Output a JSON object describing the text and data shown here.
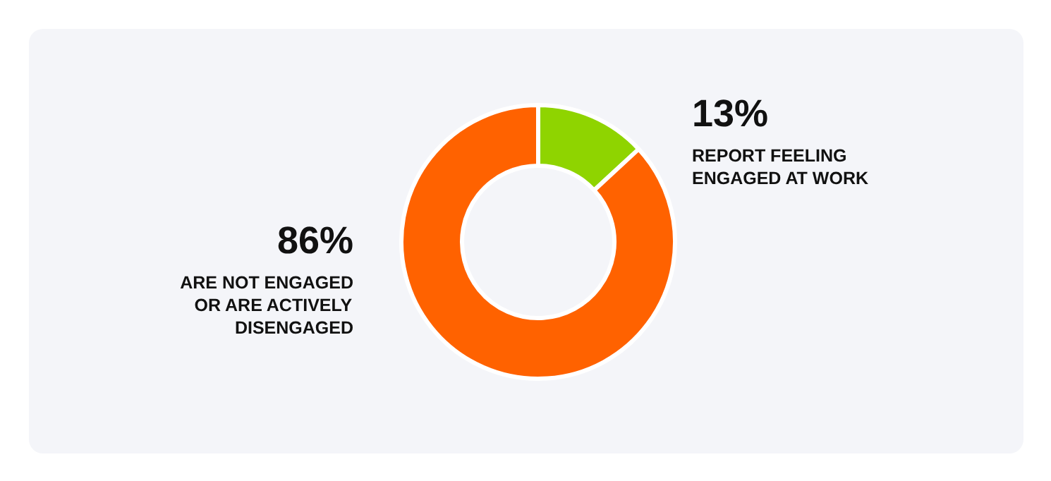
{
  "chart_data": {
    "type": "donut",
    "categories": [
      "REPORT FEELING ENGAGED AT WORK",
      "ARE NOT ENGAGED OR ARE ACTIVELY DISENGAGED"
    ],
    "values": [
      13,
      86
    ],
    "colors": [
      "#8fd400",
      "#ff6200"
    ],
    "value_labels": [
      "13%",
      "86%"
    ]
  }
}
